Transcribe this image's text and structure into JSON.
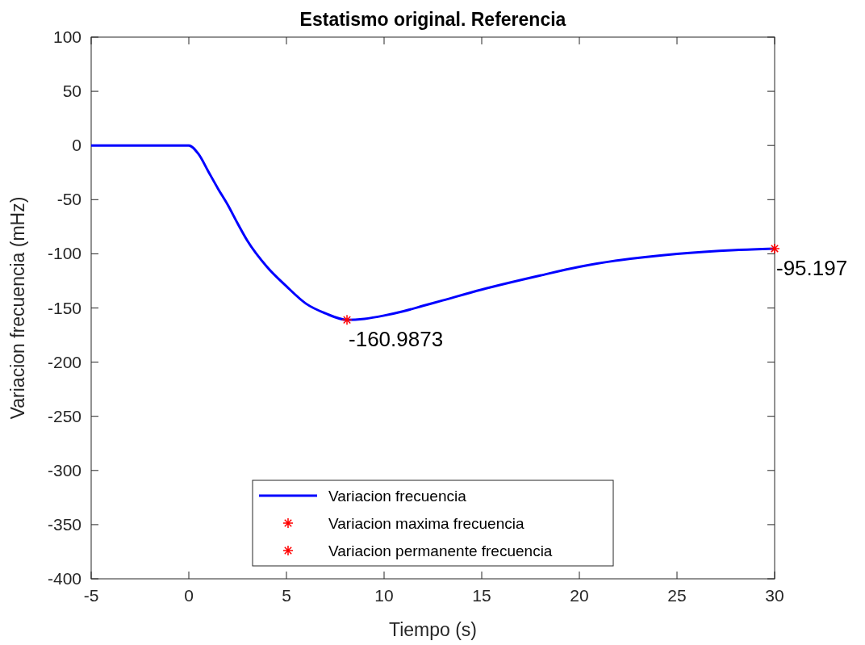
{
  "chart_data": {
    "type": "line",
    "title": "Estatismo original. Referencia",
    "xlabel": "Tiempo (s)",
    "ylabel": "Variacion frecuencia (mHz)",
    "xlim": [
      -5,
      30
    ],
    "xticks": [
      -5,
      0,
      5,
      10,
      15,
      20,
      25,
      30
    ],
    "ylim": [
      -400,
      100
    ],
    "yticks": [
      -400,
      -350,
      -300,
      -250,
      -200,
      -150,
      -100,
      -50,
      0,
      50,
      100
    ],
    "grid": false,
    "legend": "bottom",
    "series": [
      {
        "name": "Variacion frecuencia",
        "color": "#0000ff",
        "marker": "none",
        "line_style": "solid",
        "x": [
          -5,
          0,
          0.5,
          1,
          1.5,
          2,
          2.5,
          3,
          4,
          5,
          6,
          7,
          8.1,
          9,
          10,
          11,
          12,
          13,
          15,
          18,
          20,
          22,
          25,
          28,
          30
        ],
        "values": [
          0,
          0,
          -8,
          -24,
          -40,
          -55,
          -72,
          -88,
          -112,
          -130,
          -146,
          -155,
          -161,
          -160,
          -157,
          -153,
          -148,
          -143,
          -133,
          -120,
          -112,
          -106,
          -100,
          -96.5,
          -95.2
        ]
      },
      {
        "name": "Variacion maxima frecuencia",
        "type": "scatter",
        "color": "#ff0000",
        "marker": "cross",
        "x": [
          8.1
        ],
        "values": [
          -160.9873
        ],
        "value_labels": [
          "-160.9873"
        ]
      },
      {
        "name": "Variacion permanente frecuencia",
        "type": "scatter",
        "color": "#ff0000",
        "marker": "cross",
        "x": [
          30
        ],
        "values": [
          -95.197
        ],
        "value_labels": [
          "-95.197"
        ]
      }
    ]
  }
}
